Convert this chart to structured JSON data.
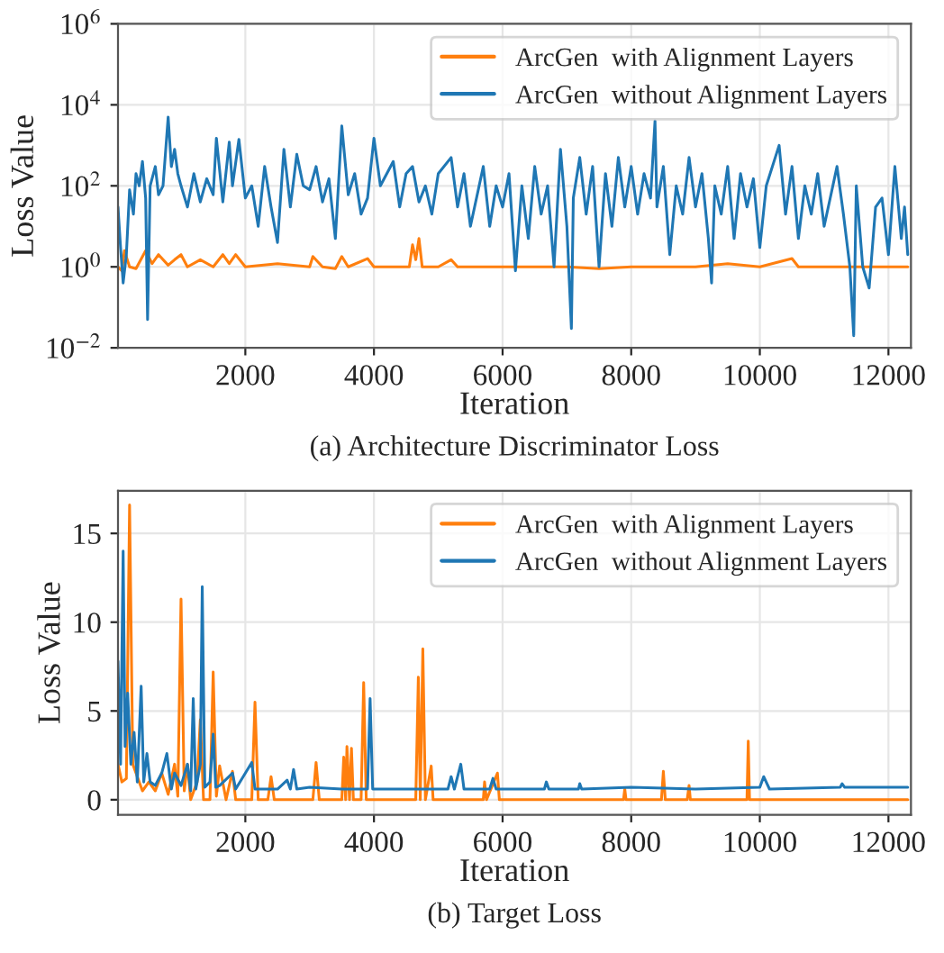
{
  "chart_data": [
    {
      "type": "line",
      "title": "(a) Architecture Discriminator Loss",
      "xlabel": "Iteration",
      "ylabel": "Loss Value",
      "log": true,
      "grid": true,
      "legend": "top right",
      "xlim": [
        20,
        12350
      ],
      "xticks": [
        2000,
        4000,
        6000,
        8000,
        10000,
        12000
      ],
      "ylim": [
        0.01,
        1000000
      ],
      "yticks": [
        {
          "value": 0.01,
          "label": "10$^{−2}$"
        },
        {
          "value": 1,
          "label": "10$^{0}$"
        },
        {
          "value": 100,
          "label": "10$^{2}$"
        },
        {
          "value": 10000,
          "label": "10$^{4}$"
        },
        {
          "value": 1000000,
          "label": "10$^{6}$"
        }
      ],
      "series": [
        {
          "name": "ArcGen  with Alignment Layers",
          "color": "#ff7f0e",
          "x": [
            20,
            80,
            120,
            200,
            300,
            450,
            550,
            650,
            800,
            900,
            1000,
            1100,
            1300,
            1500,
            1650,
            1750,
            1850,
            2000,
            2500,
            3000,
            3050,
            3200,
            3400,
            3500,
            3600,
            3900,
            4000,
            4400,
            4550,
            4600,
            4650,
            4700,
            4750,
            5000,
            5200,
            5300,
            6000,
            7000,
            7500,
            8000,
            9000,
            9500,
            10000,
            10500,
            10600,
            11000,
            12300
          ],
          "values": [
            1,
            0.8,
            2.5,
            1,
            0.9,
            2.5,
            1.2,
            2,
            1.1,
            1.5,
            2,
            1,
            1.5,
            1,
            2,
            1.2,
            2,
            1,
            1.2,
            1,
            1.8,
            1,
            0.9,
            1.8,
            1,
            1.6,
            1,
            1,
            1,
            3.5,
            1.5,
            5,
            1,
            1,
            1.5,
            1,
            1,
            1,
            0.9,
            1,
            1,
            1.2,
            1,
            1.6,
            1,
            1,
            1
          ]
        },
        {
          "name": "ArcGen  without Alignment Layers",
          "color": "#1f77b4",
          "x": [
            20,
            60,
            100,
            150,
            200,
            260,
            300,
            350,
            400,
            450,
            480,
            520,
            600,
            650,
            720,
            800,
            850,
            900,
            950,
            1000,
            1100,
            1200,
            1300,
            1400,
            1500,
            1550,
            1650,
            1750,
            1800,
            1900,
            2000,
            2100,
            2200,
            2300,
            2400,
            2500,
            2600,
            2700,
            2800,
            2900,
            3000,
            3100,
            3200,
            3300,
            3400,
            3500,
            3600,
            3700,
            3800,
            3900,
            4000,
            4100,
            4300,
            4400,
            4500,
            4600,
            4700,
            4800,
            4900,
            5000,
            5200,
            5300,
            5400,
            5500,
            5700,
            5800,
            5900,
            6000,
            6100,
            6200,
            6300,
            6400,
            6500,
            6600,
            6700,
            6800,
            6900,
            7000,
            7070,
            7100,
            7200,
            7300,
            7400,
            7500,
            7600,
            7700,
            7800,
            7900,
            8000,
            8100,
            8200,
            8300,
            8370,
            8400,
            8500,
            8600,
            8700,
            8800,
            8900,
            9000,
            9100,
            9200,
            9250,
            9300,
            9400,
            9500,
            9600,
            9700,
            9800,
            9900,
            10000,
            10100,
            10300,
            10400,
            10500,
            10600,
            10700,
            10800,
            10900,
            11000,
            11200,
            11300,
            11400,
            11460,
            11500,
            11600,
            11700,
            11800,
            11900,
            12000,
            12100,
            12200,
            12250,
            12300
          ],
          "values": [
            30,
            3,
            0.4,
            2,
            80,
            20,
            200,
            100,
            400,
            50,
            0.05,
            100,
            300,
            60,
            100,
            5000,
            300,
            800,
            200,
            100,
            30,
            200,
            40,
            150,
            60,
            1500,
            40,
            1200,
            100,
            1400,
            50,
            100,
            10,
            300,
            30,
            4,
            800,
            30,
            600,
            100,
            80,
            300,
            40,
            150,
            5,
            3000,
            60,
            200,
            20,
            50,
            1500,
            100,
            400,
            30,
            200,
            300,
            40,
            100,
            20,
            200,
            500,
            30,
            200,
            10,
            300,
            10,
            100,
            30,
            200,
            0.8,
            100,
            5,
            300,
            20,
            100,
            1,
            800,
            10,
            0.03,
            50,
            500,
            20,
            300,
            1,
            200,
            10,
            500,
            30,
            300,
            20,
            200,
            50,
            4000,
            30,
            300,
            2,
            100,
            20,
            500,
            30,
            200,
            5,
            0.4,
            100,
            20,
            300,
            5,
            200,
            30,
            150,
            3,
            100,
            1000,
            20,
            300,
            5,
            100,
            20,
            200,
            10,
            300,
            20,
            1,
            0.02,
            100,
            1,
            0.3,
            30,
            50,
            2,
            300,
            5,
            30,
            2
          ]
        }
      ]
    },
    {
      "type": "line",
      "title": "(b) Target Loss",
      "xlabel": "Iteration",
      "ylabel": "Loss Value",
      "grid": true,
      "legend": "top right",
      "xlim": [
        20,
        12350
      ],
      "xticks": [
        2000,
        4000,
        6000,
        8000,
        10000,
        12000
      ],
      "ylim": [
        -0.85,
        17.4
      ],
      "yticks": [
        0,
        5,
        10,
        15
      ],
      "series": [
        {
          "name": "ArcGen  with Alignment Layers",
          "color": "#ff7f0e",
          "x": [
            20,
            80,
            150,
            200,
            250,
            300,
            400,
            500,
            600,
            700,
            800,
            900,
            950,
            1000,
            1050,
            1100,
            1150,
            1250,
            1300,
            1350,
            1450,
            1500,
            1550,
            1600,
            1700,
            1800,
            1850,
            2100,
            2150,
            2200,
            2350,
            2400,
            2450,
            3050,
            3100,
            3150,
            3500,
            3530,
            3560,
            3580,
            3620,
            3650,
            3680,
            3800,
            3840,
            3880,
            4650,
            4690,
            4720,
            4760,
            4800,
            4890,
            4920,
            5700,
            5720,
            5750,
            5920,
            5950,
            7880,
            7900,
            7920,
            8470,
            8500,
            8530,
            8870,
            8900,
            8920,
            9800,
            9820,
            9840,
            12300
          ],
          "values": [
            2,
            1,
            1.2,
            16.6,
            2,
            1.5,
            0.5,
            1,
            0.5,
            1.5,
            0.3,
            2,
            0.2,
            11.3,
            0.5,
            2,
            0,
            1,
            4.5,
            0,
            0,
            7.2,
            0.2,
            1.9,
            0,
            1.6,
            0,
            0,
            5.5,
            0,
            0,
            1.3,
            0,
            0,
            2.1,
            0,
            0,
            2.4,
            0,
            3,
            0,
            2.9,
            0,
            0,
            6.6,
            0,
            0,
            6.9,
            0,
            8.5,
            0,
            1.9,
            0,
            0,
            1,
            0,
            1.5,
            0,
            0,
            0.6,
            0,
            0,
            1.6,
            0,
            0,
            0.8,
            0,
            0,
            3.3,
            0,
            0
          ]
        },
        {
          "name": "ArcGen  without Alignment Layers",
          "color": "#1f77b4",
          "x": [
            20,
            60,
            100,
            130,
            170,
            220,
            270,
            320,
            380,
            420,
            470,
            520,
            600,
            700,
            780,
            850,
            900,
            1000,
            1100,
            1150,
            1190,
            1230,
            1300,
            1330,
            1370,
            1450,
            1500,
            1540,
            1600,
            1800,
            1850,
            2100,
            2150,
            2500,
            2650,
            2700,
            2750,
            2800,
            3000,
            3500,
            3900,
            3940,
            3980,
            5150,
            5200,
            5250,
            5350,
            5400,
            5800,
            5850,
            5900,
            6650,
            6680,
            6720,
            7180,
            7200,
            7230,
            8000,
            9000,
            10000,
            10060,
            10150,
            11250,
            11280,
            11320,
            12300
          ],
          "values": [
            7.8,
            2,
            14,
            3,
            6,
            2,
            3.8,
            1,
            6.4,
            1,
            2.6,
            1,
            0.8,
            1.5,
            2.6,
            0.6,
            1.5,
            0.8,
            2,
            0.5,
            5.7,
            0.6,
            2,
            12,
            0.7,
            1,
            3.7,
            0.7,
            0.8,
            1.5,
            0.6,
            2.1,
            0.6,
            0.6,
            1.1,
            0.6,
            1.7,
            0.6,
            0.7,
            0.6,
            0.6,
            5.7,
            0.6,
            0.6,
            1.3,
            0.6,
            2,
            0.6,
            0.6,
            1.2,
            0.6,
            0.6,
            1,
            0.6,
            0.6,
            0.9,
            0.6,
            0.7,
            0.6,
            0.7,
            1.3,
            0.6,
            0.7,
            0.9,
            0.7,
            0.7
          ]
        }
      ]
    }
  ]
}
